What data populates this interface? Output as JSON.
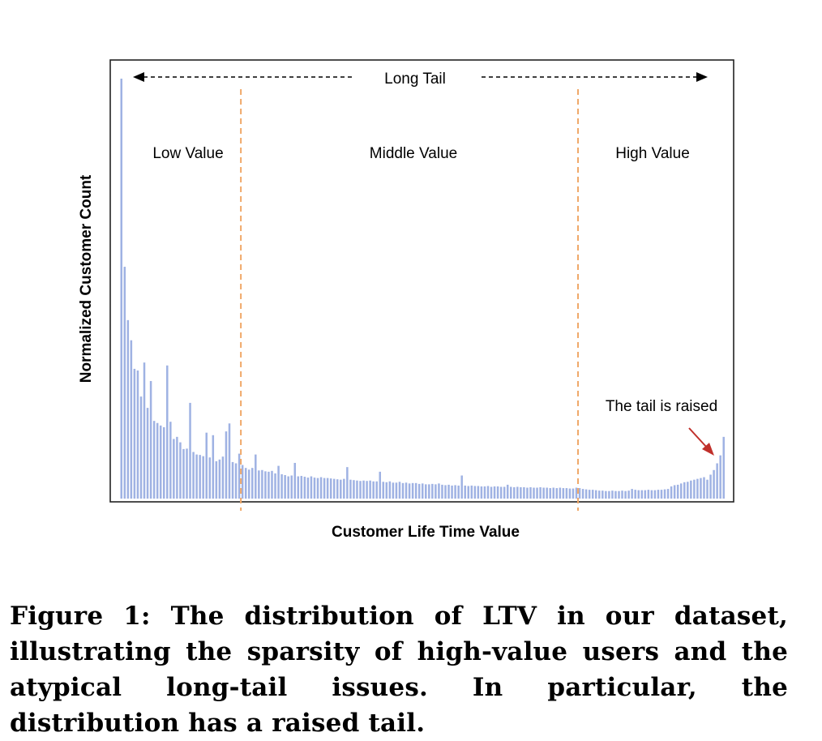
{
  "chart_data": {
    "type": "bar",
    "xlabel": "Customer Life Time Value",
    "ylabel": "Normalized Customer Count",
    "grid": false,
    "legend": "none",
    "ylim": [
      0,
      1
    ],
    "bar_color": "#9fb2e3",
    "divider_color": "#f0a868",
    "annotation_arrow_color": "#c0302b",
    "region_labels": [
      "Low Value",
      "Middle Value",
      "High Value"
    ],
    "region_boundaries_after_bar_index": [
      36,
      139
    ],
    "long_tail_label": "Long Tail",
    "tail_annotation": "The tail is raised",
    "values": [
      1.0,
      0.552,
      0.425,
      0.377,
      0.309,
      0.305,
      0.243,
      0.324,
      0.216,
      0.28,
      0.185,
      0.18,
      0.174,
      0.17,
      0.317,
      0.183,
      0.142,
      0.147,
      0.134,
      0.118,
      0.119,
      0.228,
      0.111,
      0.105,
      0.104,
      0.101,
      0.157,
      0.098,
      0.151,
      0.089,
      0.093,
      0.1,
      0.16,
      0.179,
      0.087,
      0.084,
      0.107,
      0.08,
      0.073,
      0.069,
      0.073,
      0.105,
      0.067,
      0.068,
      0.065,
      0.064,
      0.066,
      0.06,
      0.078,
      0.058,
      0.056,
      0.053,
      0.055,
      0.085,
      0.053,
      0.054,
      0.052,
      0.05,
      0.053,
      0.05,
      0.049,
      0.051,
      0.049,
      0.049,
      0.048,
      0.047,
      0.046,
      0.045,
      0.047,
      0.075,
      0.045,
      0.044,
      0.043,
      0.042,
      0.043,
      0.042,
      0.043,
      0.041,
      0.041,
      0.064,
      0.04,
      0.039,
      0.041,
      0.038,
      0.038,
      0.04,
      0.037,
      0.038,
      0.036,
      0.037,
      0.037,
      0.035,
      0.036,
      0.034,
      0.034,
      0.035,
      0.034,
      0.036,
      0.033,
      0.032,
      0.033,
      0.031,
      0.032,
      0.031,
      0.055,
      0.031,
      0.03,
      0.031,
      0.03,
      0.03,
      0.029,
      0.029,
      0.03,
      0.028,
      0.029,
      0.029,
      0.028,
      0.028,
      0.033,
      0.028,
      0.027,
      0.028,
      0.027,
      0.027,
      0.026,
      0.027,
      0.026,
      0.026,
      0.027,
      0.026,
      0.026,
      0.025,
      0.026,
      0.025,
      0.026,
      0.025,
      0.025,
      0.024,
      0.024,
      0.026,
      0.025,
      0.023,
      0.022,
      0.021,
      0.021,
      0.02,
      0.019,
      0.019,
      0.018,
      0.018,
      0.019,
      0.018,
      0.018,
      0.019,
      0.018,
      0.019,
      0.023,
      0.021,
      0.02,
      0.02,
      0.02,
      0.021,
      0.02,
      0.02,
      0.021,
      0.021,
      0.022,
      0.023,
      0.029,
      0.032,
      0.033,
      0.036,
      0.039,
      0.04,
      0.043,
      0.045,
      0.047,
      0.049,
      0.051,
      0.045,
      0.057,
      0.068,
      0.084,
      0.103,
      0.147
    ]
  },
  "caption": "Figure 1: The distribution of LTV in our dataset, illustrating the sparsity of high-value users and the atypical long-tail issues. In particular, the distribution has a raised tail."
}
